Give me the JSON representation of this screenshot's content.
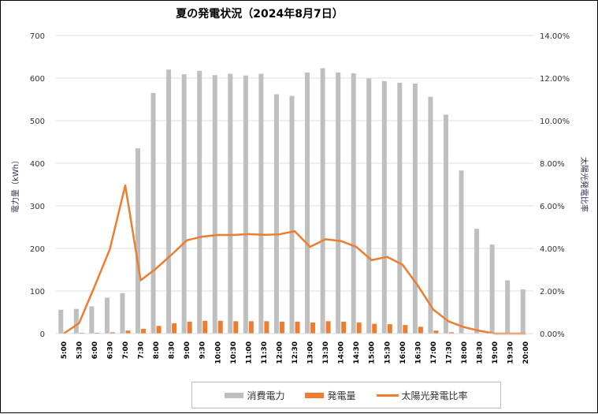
{
  "chart": {
    "title": "夏の発電状況（2024年8月7日）",
    "colors": {
      "consumption": "#bfbfbf",
      "generation": "#ed7d31",
      "ratio": "#ed7d31",
      "grid": "#d9dde6"
    }
  },
  "legend": {
    "items": [
      {
        "label": "消費電力",
        "type": "bar",
        "color": "#bfbfbf"
      },
      {
        "label": "発電量",
        "type": "bar",
        "color": "#ed7d31"
      },
      {
        "label": "太陽光発電比率",
        "type": "line",
        "color": "#ed7d31"
      }
    ]
  },
  "chart_data": {
    "type": "bar",
    "title": "夏の発電状況（2024年8月7日）",
    "xlabel": "",
    "ylabel": "電力量（kWh）",
    "y2label": "太陽光発電比率",
    "ylim": [
      0,
      700
    ],
    "yticks": [
      0,
      100,
      200,
      300,
      400,
      500,
      600,
      700
    ],
    "y2lim": [
      0,
      14
    ],
    "y2ticks": [
      "0.00%",
      "2.00%",
      "4.00%",
      "6.00%",
      "8.00%",
      "10.00%",
      "12.00%",
      "14.00%"
    ],
    "grid": true,
    "legend_position": "bottom",
    "categories": [
      "5:00",
      "5:30",
      "6:00",
      "6:30",
      "7:00",
      "7:30",
      "8:00",
      "8:30",
      "9:00",
      "9:30",
      "10:00",
      "10:30",
      "11:00",
      "11:30",
      "12:00",
      "12:30",
      "13:00",
      "13:30",
      "14:00",
      "14:30",
      "15:00",
      "15:30",
      "16:00",
      "16:30",
      "17:00",
      "17:30",
      "18:00",
      "18:30",
      "19:00",
      "19:30",
      "20:00"
    ],
    "series": [
      {
        "name": "消費電力",
        "type": "bar",
        "axis": "left",
        "values": [
          56,
          58,
          64,
          84,
          95,
          435,
          565,
          620,
          609,
          617,
          607,
          610,
          606,
          610,
          562,
          558,
          613,
          623,
          613,
          611,
          599,
          593,
          589,
          587,
          556,
          514,
          383,
          246,
          209,
          125,
          104
        ]
      },
      {
        "name": "発電量",
        "type": "bar",
        "axis": "left",
        "values": [
          0,
          2,
          2,
          3,
          7,
          11,
          18,
          24,
          28,
          30,
          30,
          29,
          29,
          29,
          28,
          28,
          26,
          29,
          28,
          26,
          23,
          22,
          20,
          16,
          7,
          3,
          1,
          1,
          0,
          0,
          0
        ]
      },
      {
        "name": "太陽光発電比率",
        "type": "line",
        "axis": "right",
        "unit": "%",
        "values": [
          0.0,
          0.48,
          2.2,
          3.96,
          6.96,
          2.5,
          3.05,
          3.7,
          4.38,
          4.55,
          4.63,
          4.63,
          4.67,
          4.64,
          4.66,
          4.81,
          4.07,
          4.43,
          4.35,
          4.07,
          3.45,
          3.6,
          3.24,
          2.25,
          1.13,
          0.57,
          0.3,
          0.13,
          0.0,
          0.0,
          0.0
        ]
      }
    ]
  }
}
